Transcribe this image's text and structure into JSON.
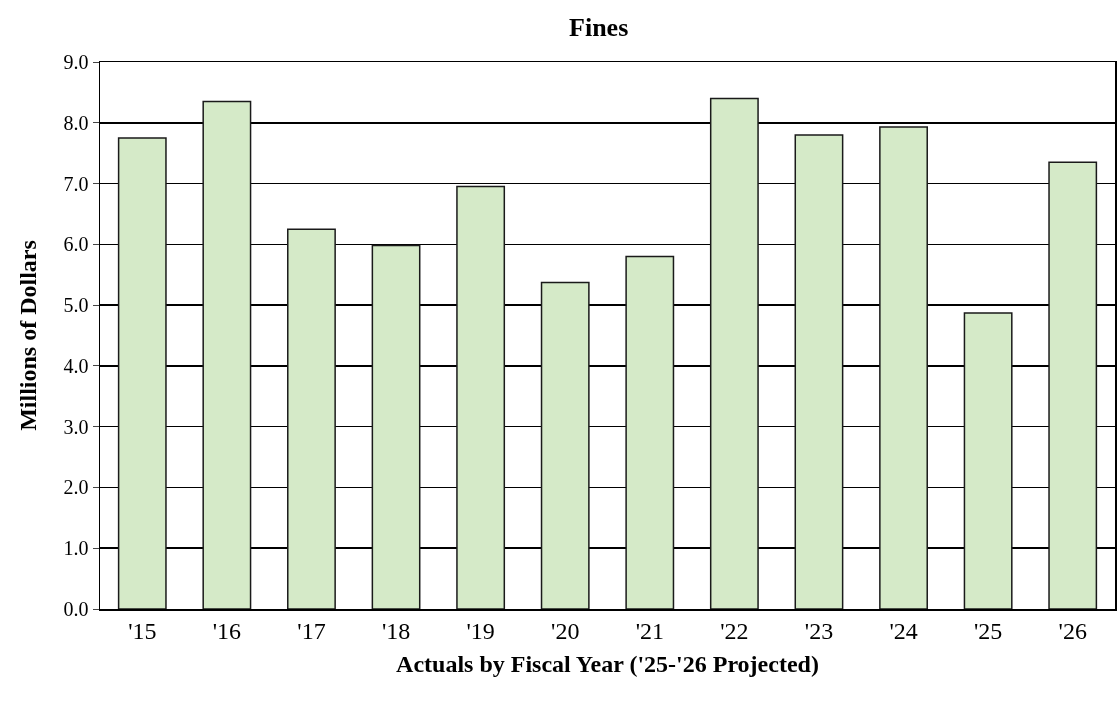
{
  "chart_data": {
    "type": "bar",
    "title": "Fines",
    "xlabel": "Actuals by Fiscal Year ('25-'26 Projected)",
    "ylabel": "Millions of Dollars",
    "categories": [
      "'15",
      "'16",
      "'17",
      "'18",
      "'19",
      "'20",
      "'21",
      "'22",
      "'23",
      "'24",
      "'25",
      "'26"
    ],
    "values": [
      7.75,
      8.35,
      6.25,
      5.98,
      6.95,
      5.37,
      5.8,
      8.4,
      7.8,
      7.93,
      4.87,
      7.35
    ],
    "color": "#d5eac8",
    "ylim": [
      0,
      9
    ],
    "yticks": [
      {
        "value": 0,
        "label": "0.0"
      },
      {
        "value": 1,
        "label": "1.0"
      },
      {
        "value": 2,
        "label": "2.0"
      },
      {
        "value": 3,
        "label": "3.0"
      },
      {
        "value": 4,
        "label": "4.0"
      },
      {
        "value": 5,
        "label": "5.0"
      },
      {
        "value": 6,
        "label": "6.0"
      },
      {
        "value": 7,
        "label": "7.0"
      },
      {
        "value": 8,
        "label": "8.0"
      },
      {
        "value": 9,
        "label": "9.0"
      }
    ],
    "grid": "y"
  }
}
